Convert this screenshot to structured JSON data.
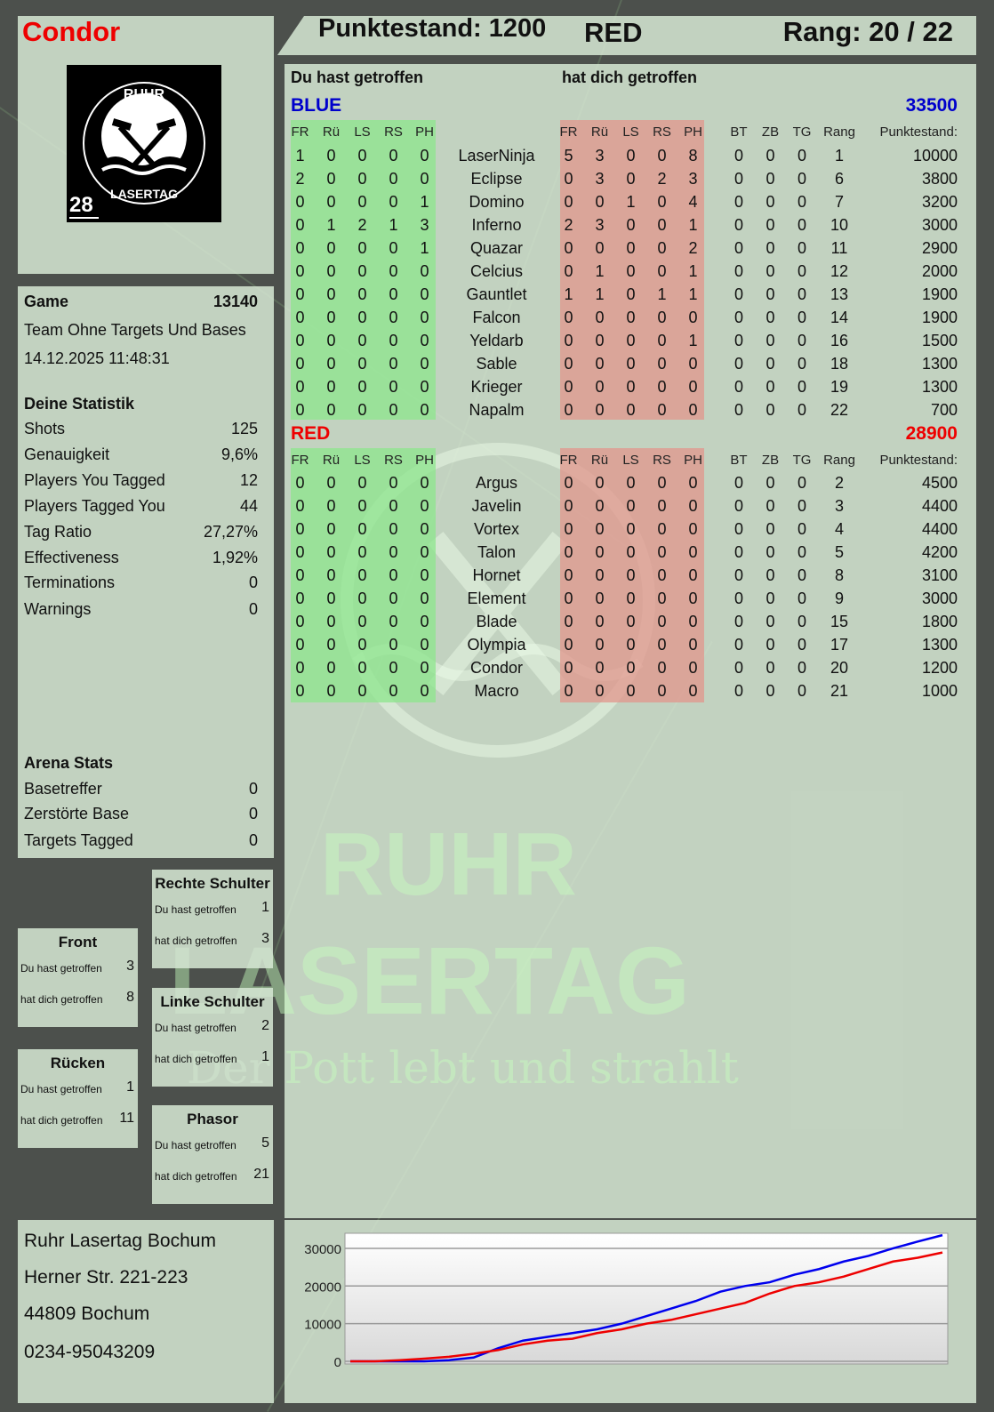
{
  "player": {
    "name": "Condor",
    "score_label": "Punktestand: 1200",
    "team": "RED",
    "rank_label": "Rang: 20 / 22"
  },
  "logo": {
    "text_top": "RUHR",
    "text_bottom": "LASERTAG",
    "number": "28"
  },
  "watermark": {
    "line1": "RUHR",
    "line2": "LASERTAG",
    "slogan": "Der Pott lebt und strahlt"
  },
  "colors": {
    "player_name": "#ee0000",
    "blue_team": "#0000cc",
    "red_team": "#ee0000",
    "you_hit": "#8ee68e",
    "hit_you": "#e1968c"
  },
  "game": {
    "label": "Game",
    "id": "13140",
    "mode": "Team Ohne Targets Und Bases",
    "datetime": "14.12.2025 11:48:31"
  },
  "stats": {
    "title": "Deine Statistik",
    "items": [
      {
        "label": "Shots",
        "value": "125"
      },
      {
        "label": "Genauigkeit",
        "value": "9,6%"
      },
      {
        "label": "Players You Tagged",
        "value": "12"
      },
      {
        "label": "Players Tagged You",
        "value": "44"
      },
      {
        "label": "Tag Ratio",
        "value": "27,27%"
      },
      {
        "label": "Effectiveness",
        "value": "1,92%"
      },
      {
        "label": "Terminations",
        "value": "0"
      },
      {
        "label": "Warnings",
        "value": "0"
      }
    ]
  },
  "arena": {
    "title": "Arena Stats",
    "items": [
      {
        "label": "Basetreffer",
        "value": "0"
      },
      {
        "label": "Zerstörte Base",
        "value": "0"
      },
      {
        "label": "Targets Tagged",
        "value": "0"
      }
    ]
  },
  "body_parts": [
    {
      "title": "Front",
      "you_hit_label": "Du hast getroffen",
      "you_hit": "3",
      "hit_you_label": "hat dich getroffen",
      "hit_you": "8"
    },
    {
      "title": "Rücken",
      "you_hit_label": "Du hast getroffen",
      "you_hit": "1",
      "hit_you_label": "hat dich getroffen",
      "hit_you": "11"
    },
    {
      "title": "Rechte Schulter",
      "you_hit_label": "Du hast getroffen",
      "you_hit": "1",
      "hit_you_label": "hat dich getroffen",
      "hit_you": "3"
    },
    {
      "title": "Linke Schulter",
      "you_hit_label": "Du hast getroffen",
      "you_hit": "2",
      "hit_you_label": "hat dich getroffen",
      "hit_you": "1"
    },
    {
      "title": "Phasor",
      "you_hit_label": "Du hast getroffen",
      "you_hit": "5",
      "hit_you_label": "hat dich getroffen",
      "hit_you": "21"
    }
  ],
  "table": {
    "you_hit_title": "Du hast getroffen",
    "hit_you_title": "hat dich getroffen",
    "columns": [
      "FR",
      "Rü",
      "LS",
      "RS",
      "PH",
      "",
      "FR",
      "Rü",
      "LS",
      "RS",
      "PH",
      "",
      "BT",
      "ZB",
      "TG",
      "Rang",
      "Punktestand:"
    ],
    "teams": [
      {
        "name": "BLUE",
        "score": "33500",
        "rows": [
          [
            "1",
            "0",
            "0",
            "0",
            "0",
            "LaserNinja",
            "5",
            "3",
            "0",
            "0",
            "8",
            "",
            "0",
            "0",
            "0",
            "1",
            "10000"
          ],
          [
            "2",
            "0",
            "0",
            "0",
            "0",
            "Eclipse",
            "0",
            "3",
            "0",
            "2",
            "3",
            "",
            "0",
            "0",
            "0",
            "6",
            "3800"
          ],
          [
            "0",
            "0",
            "0",
            "0",
            "1",
            "Domino",
            "0",
            "0",
            "1",
            "0",
            "4",
            "",
            "0",
            "0",
            "0",
            "7",
            "3200"
          ],
          [
            "0",
            "1",
            "2",
            "1",
            "3",
            "Inferno",
            "2",
            "3",
            "0",
            "0",
            "1",
            "",
            "0",
            "0",
            "0",
            "10",
            "3000"
          ],
          [
            "0",
            "0",
            "0",
            "0",
            "1",
            "Quazar",
            "0",
            "0",
            "0",
            "0",
            "2",
            "",
            "0",
            "0",
            "0",
            "11",
            "2900"
          ],
          [
            "0",
            "0",
            "0",
            "0",
            "0",
            "Celcius",
            "0",
            "1",
            "0",
            "0",
            "1",
            "",
            "0",
            "0",
            "0",
            "12",
            "2000"
          ],
          [
            "0",
            "0",
            "0",
            "0",
            "0",
            "Gauntlet",
            "1",
            "1",
            "0",
            "1",
            "1",
            "",
            "0",
            "0",
            "0",
            "13",
            "1900"
          ],
          [
            "0",
            "0",
            "0",
            "0",
            "0",
            "Falcon",
            "0",
            "0",
            "0",
            "0",
            "0",
            "",
            "0",
            "0",
            "0",
            "14",
            "1900"
          ],
          [
            "0",
            "0",
            "0",
            "0",
            "0",
            "Yeldarb",
            "0",
            "0",
            "0",
            "0",
            "1",
            "",
            "0",
            "0",
            "0",
            "16",
            "1500"
          ],
          [
            "0",
            "0",
            "0",
            "0",
            "0",
            "Sable",
            "0",
            "0",
            "0",
            "0",
            "0",
            "",
            "0",
            "0",
            "0",
            "18",
            "1300"
          ],
          [
            "0",
            "0",
            "0",
            "0",
            "0",
            "Krieger",
            "0",
            "0",
            "0",
            "0",
            "0",
            "",
            "0",
            "0",
            "0",
            "19",
            "1300"
          ],
          [
            "0",
            "0",
            "0",
            "0",
            "0",
            "Napalm",
            "0",
            "0",
            "0",
            "0",
            "0",
            "",
            "0",
            "0",
            "0",
            "22",
            "700"
          ]
        ]
      },
      {
        "name": "RED",
        "score": "28900",
        "rows": [
          [
            "0",
            "0",
            "0",
            "0",
            "0",
            "Argus",
            "0",
            "0",
            "0",
            "0",
            "0",
            "",
            "0",
            "0",
            "0",
            "2",
            "4500"
          ],
          [
            "0",
            "0",
            "0",
            "0",
            "0",
            "Javelin",
            "0",
            "0",
            "0",
            "0",
            "0",
            "",
            "0",
            "0",
            "0",
            "3",
            "4400"
          ],
          [
            "0",
            "0",
            "0",
            "0",
            "0",
            "Vortex",
            "0",
            "0",
            "0",
            "0",
            "0",
            "",
            "0",
            "0",
            "0",
            "4",
            "4400"
          ],
          [
            "0",
            "0",
            "0",
            "0",
            "0",
            "Talon",
            "0",
            "0",
            "0",
            "0",
            "0",
            "",
            "0",
            "0",
            "0",
            "5",
            "4200"
          ],
          [
            "0",
            "0",
            "0",
            "0",
            "0",
            "Hornet",
            "0",
            "0",
            "0",
            "0",
            "0",
            "",
            "0",
            "0",
            "0",
            "8",
            "3100"
          ],
          [
            "0",
            "0",
            "0",
            "0",
            "0",
            "Element",
            "0",
            "0",
            "0",
            "0",
            "0",
            "",
            "0",
            "0",
            "0",
            "9",
            "3000"
          ],
          [
            "0",
            "0",
            "0",
            "0",
            "0",
            "Blade",
            "0",
            "0",
            "0",
            "0",
            "0",
            "",
            "0",
            "0",
            "0",
            "15",
            "1800"
          ],
          [
            "0",
            "0",
            "0",
            "0",
            "0",
            "Olympia",
            "0",
            "0",
            "0",
            "0",
            "0",
            "",
            "0",
            "0",
            "0",
            "17",
            "1300"
          ],
          [
            "0",
            "0",
            "0",
            "0",
            "0",
            "Condor",
            "0",
            "0",
            "0",
            "0",
            "0",
            "",
            "0",
            "0",
            "0",
            "20",
            "1200"
          ],
          [
            "0",
            "0",
            "0",
            "0",
            "0",
            "Macro",
            "0",
            "0",
            "0",
            "0",
            "0",
            "",
            "0",
            "0",
            "0",
            "21",
            "1000"
          ]
        ]
      }
    ]
  },
  "address": {
    "lines": [
      "Ruhr Lasertag Bochum",
      "Herner Str. 221-223",
      "44809 Bochum",
      "0234-95043209"
    ]
  },
  "chart_data": {
    "type": "line",
    "grid": true,
    "ylim": [
      0,
      34000
    ],
    "yticks": [
      "0",
      "10000",
      "20000",
      "30000"
    ],
    "series": [
      {
        "color": "#0000ee",
        "values": [
          0,
          0,
          0,
          0,
          300,
          1000,
          3500,
          5500,
          6500,
          7500,
          8500,
          10000,
          12000,
          14000,
          16000,
          18500,
          20000,
          21000,
          23000,
          24500,
          26500,
          28000,
          30000,
          31800,
          33500
        ]
      },
      {
        "color": "#ee0000",
        "values": [
          0,
          0,
          300,
          700,
          1200,
          2000,
          3000,
          4500,
          5500,
          6000,
          7500,
          8500,
          10000,
          11000,
          12500,
          14000,
          15500,
          18000,
          20000,
          21000,
          22500,
          24500,
          26500,
          27500,
          28900
        ]
      }
    ]
  }
}
